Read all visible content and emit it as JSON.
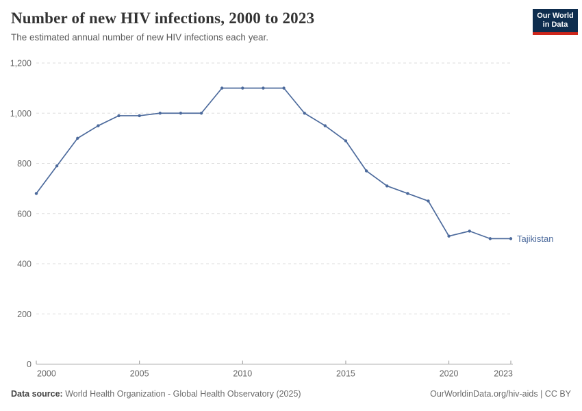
{
  "header": {
    "title": "Number of new HIV infections, 2000 to 2023",
    "subtitle": "The estimated annual number of new HIV infections each year.",
    "logo": {
      "line1": "Our World",
      "line2": "in Data"
    }
  },
  "chart_data": {
    "type": "line",
    "title": "Number of new HIV infections, 2000 to 2023",
    "x": [
      2000,
      2001,
      2002,
      2003,
      2004,
      2005,
      2006,
      2007,
      2008,
      2009,
      2010,
      2011,
      2012,
      2013,
      2014,
      2015,
      2016,
      2017,
      2018,
      2019,
      2020,
      2021,
      2022,
      2023
    ],
    "series": [
      {
        "name": "Tajikistan",
        "color": "#4c6a9c",
        "values": [
          680,
          790,
          900,
          950,
          990,
          990,
          1000,
          1000,
          1000,
          1100,
          1100,
          1100,
          1100,
          1000,
          950,
          890,
          770,
          710,
          680,
          650,
          510,
          530,
          500,
          500
        ]
      }
    ],
    "xlabel": "",
    "ylabel": "",
    "ylim": [
      0,
      1200
    ],
    "yticks": [
      0,
      200,
      400,
      600,
      800,
      1000,
      1200
    ],
    "xticks": [
      2000,
      2005,
      2010,
      2015,
      2020,
      2023
    ],
    "grid": "horizontal-dashed",
    "legend_position": "end-of-line-label",
    "end_label": "Tajikistan"
  },
  "footer": {
    "source_label": "Data source:",
    "source_text": " World Health Organization - Global Health Observatory (2025)",
    "link_text": "OurWorldinData.org/hiv-aids | CC BY"
  },
  "colors": {
    "line": "#4c6a9c",
    "grid": "#dddddd",
    "axis": "#999999",
    "tick_text": "#666666",
    "logo_bg": "#0e2d4e",
    "logo_stripe": "#ce261b"
  }
}
